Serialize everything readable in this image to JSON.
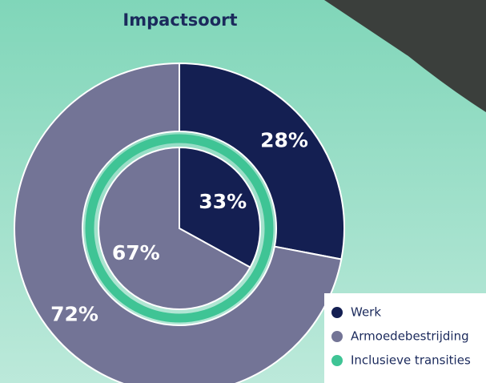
{
  "chart_data": {
    "type": "pie",
    "title": "Impactsoort",
    "series": [
      {
        "name": "Werk",
        "color": "#141f52"
      },
      {
        "name": "Armoedebestrijding",
        "color": "#737496"
      },
      {
        "name": "Inclusieve transities",
        "color": "#3fc495"
      }
    ],
    "outer": {
      "values": [
        28,
        72
      ],
      "value_labels": [
        "28%",
        "72%"
      ]
    },
    "inner": {
      "values": [
        33,
        67
      ],
      "value_labels": [
        "33%",
        "67%"
      ]
    }
  }
}
